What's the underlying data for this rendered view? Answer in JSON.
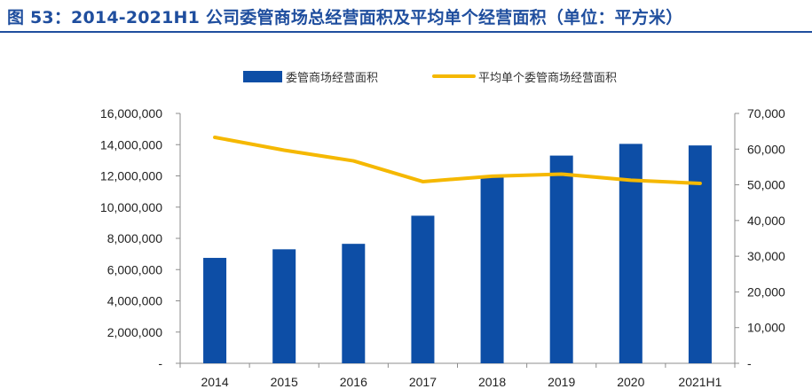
{
  "title": "图 53：2014-2021H1 公司委管商场总经营面积及平均单个经营面积（单位：平方米）",
  "chart_data": {
    "type": "bar",
    "categories": [
      "2014",
      "2015",
      "2016",
      "2017",
      "2018",
      "2019",
      "2020",
      "2021H1"
    ],
    "series": [
      {
        "name": "委管商场经营面积",
        "type": "bar",
        "axis": "left",
        "color": "#0d4ea6",
        "values": [
          6750000,
          7300000,
          7650000,
          9450000,
          12000000,
          13300000,
          14050000,
          13950000
        ]
      },
      {
        "name": "平均单个委管商场经营面积",
        "type": "line",
        "axis": "right",
        "color": "#f5b800",
        "values": [
          63300,
          59700,
          56700,
          50900,
          52400,
          53000,
          51300,
          50400
        ]
      }
    ],
    "y_left": {
      "lim": [
        0,
        16000000
      ],
      "ticks": [
        "-",
        "2,000,000",
        "4,000,000",
        "6,000,000",
        "8,000,000",
        "10,000,000",
        "12,000,000",
        "14,000,000",
        "16,000,000"
      ]
    },
    "y_right": {
      "lim": [
        0,
        70000
      ],
      "ticks": [
        "-",
        "10,000",
        "20,000",
        "30,000",
        "40,000",
        "50,000",
        "60,000",
        "70,000"
      ]
    },
    "legend": "top-center",
    "grid": false
  }
}
